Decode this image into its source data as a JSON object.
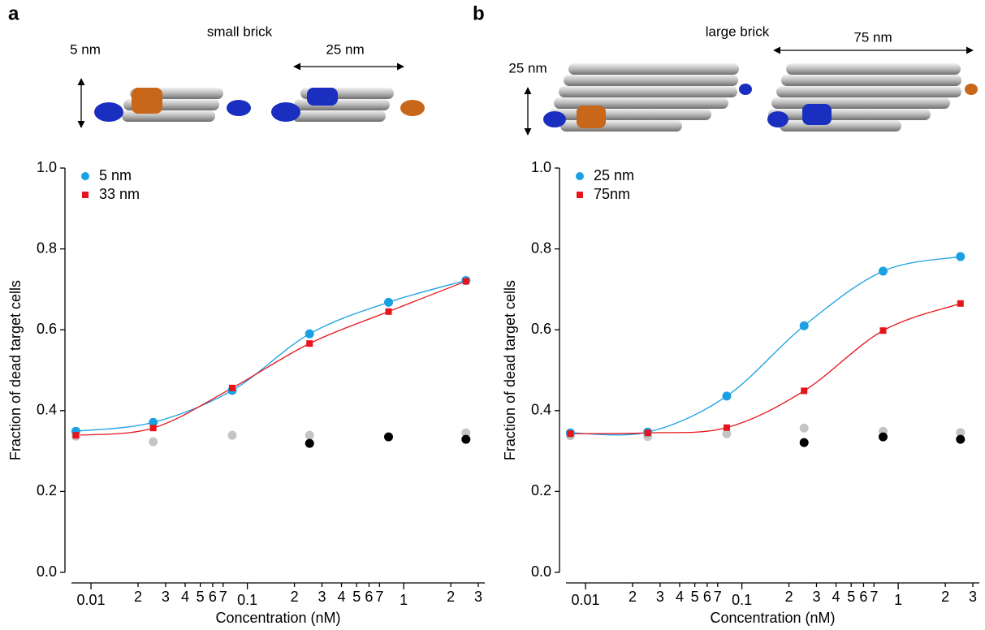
{
  "chart_data": [
    {
      "type": "scatter",
      "panel": "a",
      "brick_label": "small brick",
      "height_label": "5 nm",
      "length_label": "25 nm",
      "xlabel": "Concentration (nM)",
      "ylabel": "Fraction of dead target cells",
      "xscale": "log",
      "xlim": [
        0.0075,
        3.3
      ],
      "ylim": [
        0,
        1
      ],
      "legend": "upper left",
      "xticks": [
        0.01,
        {
          "value": 0.02,
          "label": "2"
        },
        {
          "value": 0.03,
          "label": "3"
        },
        {
          "value": 0.04,
          "label": "4"
        },
        {
          "value": 0.05,
          "label": "5"
        },
        {
          "value": 0.06,
          "label": "6"
        },
        {
          "value": 0.07,
          "label": "7"
        },
        0.1,
        {
          "value": 0.2,
          "label": "2"
        },
        {
          "value": 0.3,
          "label": "3"
        },
        {
          "value": 0.4,
          "label": "4"
        },
        {
          "value": 0.5,
          "label": "5"
        },
        {
          "value": 0.6,
          "label": "6"
        },
        {
          "value": 0.7,
          "label": "7"
        },
        1,
        {
          "value": 2,
          "label": "2"
        },
        {
          "value": 3,
          "label": "3"
        }
      ],
      "yticks": [
        {
          "value": 0,
          "label": "0.0"
        },
        0.2,
        0.4,
        0.6,
        0.8,
        {
          "value": 1,
          "label": "1.0"
        }
      ],
      "series": [
        {
          "color": "#c4c4c4",
          "marker": "circle",
          "x": [
            0.008,
            0.025,
            0.08,
            0.25,
            2.5
          ],
          "values": [
            0.337,
            0.323,
            0.339,
            0.339,
            0.345
          ]
        },
        {
          "color": "#000000",
          "marker": "circle",
          "x": [
            0.25,
            0.8,
            2.5
          ],
          "values": [
            0.319,
            0.335,
            0.329
          ]
        },
        {
          "name": "5 nm",
          "color": "#1ba1e2",
          "marker": "circle",
          "line": true,
          "x": [
            0.008,
            0.025,
            0.08,
            0.25,
            0.8,
            2.5
          ],
          "values": [
            0.349,
            0.371,
            0.45,
            0.59,
            0.668,
            0.722
          ]
        },
        {
          "name": "33 nm",
          "color": "#e8141b",
          "marker": "square",
          "line": true,
          "x": [
            0.008,
            0.025,
            0.08,
            0.25,
            0.8,
            2.5
          ],
          "values": [
            0.339,
            0.357,
            0.456,
            0.566,
            0.645,
            0.72
          ]
        }
      ]
    },
    {
      "type": "scatter",
      "panel": "b",
      "brick_label": "large brick",
      "height_label": "25 nm",
      "length_label": "75 nm",
      "xlabel": "Concentration (nM)",
      "ylabel": "Fraction of dead target cells",
      "xscale": "log",
      "xlim": [
        0.0075,
        3.3
      ],
      "ylim": [
        0,
        1
      ],
      "legend": "upper left",
      "xticks": [
        0.01,
        {
          "value": 0.02,
          "label": "2"
        },
        {
          "value": 0.03,
          "label": "3"
        },
        {
          "value": 0.04,
          "label": "4"
        },
        {
          "value": 0.05,
          "label": "5"
        },
        {
          "value": 0.06,
          "label": "6"
        },
        {
          "value": 0.07,
          "label": "7"
        },
        0.1,
        {
          "value": 0.2,
          "label": "2"
        },
        {
          "value": 0.3,
          "label": "3"
        },
        {
          "value": 0.4,
          "label": "4"
        },
        {
          "value": 0.5,
          "label": "5"
        },
        {
          "value": 0.6,
          "label": "6"
        },
        {
          "value": 0.7,
          "label": "7"
        },
        1,
        {
          "value": 2,
          "label": "2"
        },
        {
          "value": 3,
          "label": "3"
        }
      ],
      "yticks": [
        {
          "value": 0,
          "label": "0.0"
        },
        0.2,
        0.4,
        0.6,
        0.8,
        {
          "value": 1,
          "label": "1.0"
        }
      ],
      "series": [
        {
          "color": "#c4c4c4",
          "marker": "circle",
          "x": [
            0.008,
            0.025,
            0.08,
            0.25,
            0.8,
            2.5
          ],
          "values": [
            0.338,
            0.336,
            0.343,
            0.357,
            0.349,
            0.346
          ]
        },
        {
          "color": "#000000",
          "marker": "circle",
          "x": [
            0.25,
            0.8,
            2.5
          ],
          "values": [
            0.321,
            0.335,
            0.329
          ]
        },
        {
          "name": "25 nm",
          "color": "#1ba1e2",
          "marker": "circle",
          "line": true,
          "x": [
            0.008,
            0.025,
            0.08,
            0.25,
            0.8,
            2.5
          ],
          "values": [
            0.345,
            0.347,
            0.436,
            0.61,
            0.745,
            0.781
          ]
        },
        {
          "name": "75nm",
          "color": "#e8141b",
          "marker": "square",
          "line": true,
          "x": [
            0.008,
            0.025,
            0.08,
            0.25,
            0.8,
            2.5
          ],
          "values": [
            0.343,
            0.345,
            0.358,
            0.449,
            0.598,
            0.665
          ]
        }
      ]
    }
  ]
}
